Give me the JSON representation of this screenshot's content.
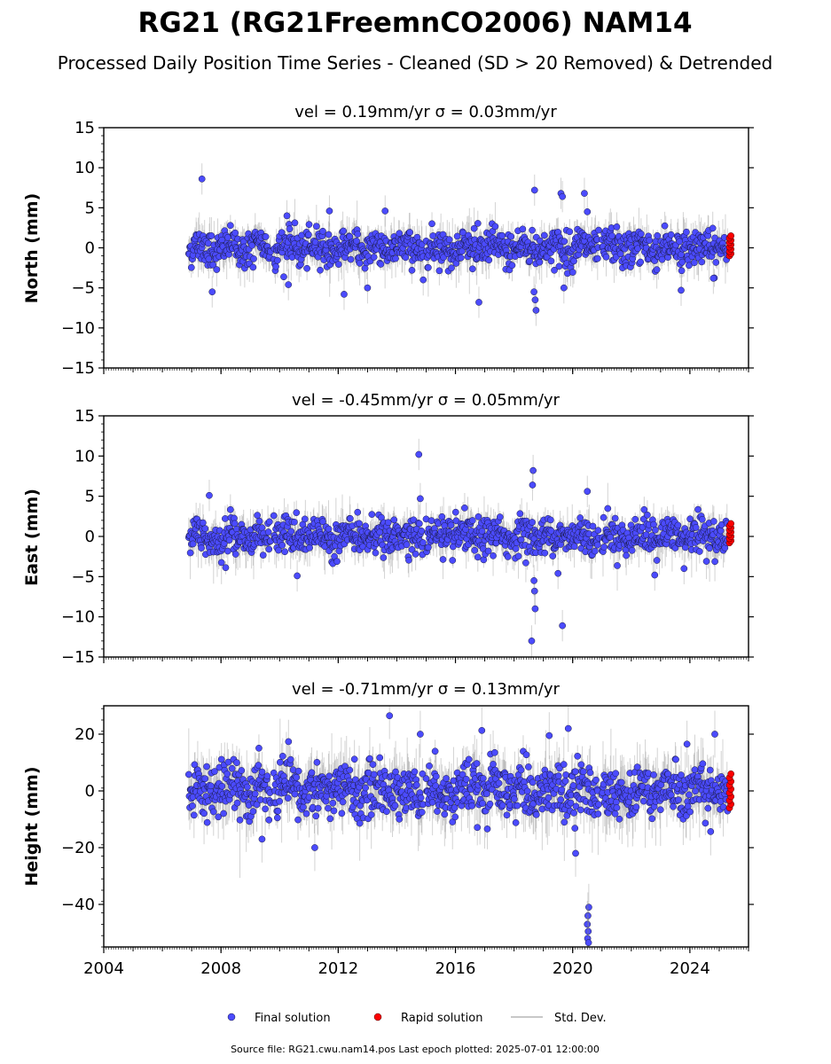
{
  "title": "RG21 (RG21FreemnCO2006) NAM14",
  "subtitle": "Processed Daily Position Time Series - Cleaned (SD > 20 Removed) & Detrended",
  "legend": {
    "final": "Final solution",
    "rapid": "Rapid solution",
    "std": "Std. Dev."
  },
  "footer": "Source file: RG21.cwu.nam14.pos  Last epoch plotted: 2025-07-01 12:00:00",
  "colors": {
    "final": "#4b4bff",
    "final_edge": "#1a1a40",
    "rapid": "#ff0000",
    "std": "#808080"
  },
  "chart_data": [
    {
      "type": "scatter",
      "component": "north",
      "panel_title": "vel = 0.19mm/yr   σ = 0.03mm/yr",
      "ylabel": "North (mm)",
      "xlim": [
        2004,
        2026
      ],
      "ylim": [
        -15,
        15
      ],
      "x_ticks": [
        2004,
        2008,
        2012,
        2016,
        2020,
        2024
      ],
      "y_ticks": [
        -15,
        -10,
        -5,
        0,
        5,
        10,
        15
      ],
      "segments": [
        [
          2006.9,
          2009.7
        ],
        [
          2009.8,
          2014.9
        ],
        [
          2015.0,
          2020.9
        ],
        [
          2021.0,
          2025.3
        ]
      ],
      "rapid_x": [
        2025.3,
        2025.5
      ],
      "typical_scatter": 1.3,
      "rapid_range": [
        -1,
        1.5
      ],
      "outliers": [
        {
          "x": 2007.35,
          "y": 8.6
        },
        {
          "x": 2007.7,
          "y": -5.5
        },
        {
          "x": 2010.25,
          "y": 4.0
        },
        {
          "x": 2010.3,
          "y": -4.6
        },
        {
          "x": 2011.7,
          "y": 4.6
        },
        {
          "x": 2012.2,
          "y": -5.8
        },
        {
          "x": 2013.6,
          "y": 4.6
        },
        {
          "x": 2013.0,
          "y": -5.0
        },
        {
          "x": 2014.9,
          "y": -4.0
        },
        {
          "x": 2016.8,
          "y": -6.8
        },
        {
          "x": 2018.7,
          "y": 7.2
        },
        {
          "x": 2018.75,
          "y": -7.8
        },
        {
          "x": 2018.72,
          "y": -6.5
        },
        {
          "x": 2018.68,
          "y": -5.5
        },
        {
          "x": 2019.6,
          "y": 6.8
        },
        {
          "x": 2019.65,
          "y": 6.4
        },
        {
          "x": 2020.4,
          "y": 6.8
        },
        {
          "x": 2019.7,
          "y": -5.0
        },
        {
          "x": 2020.5,
          "y": 4.5
        },
        {
          "x": 2023.7,
          "y": -5.3
        },
        {
          "x": 2024.8,
          "y": -3.8
        }
      ]
    },
    {
      "type": "scatter",
      "component": "east",
      "panel_title": "vel = -0.45mm/yr   σ = 0.05mm/yr",
      "ylabel": "East (mm)",
      "xlim": [
        2004,
        2026
      ],
      "ylim": [
        -15,
        15
      ],
      "x_ticks": [
        2004,
        2008,
        2012,
        2016,
        2020,
        2024
      ],
      "y_ticks": [
        -15,
        -10,
        -5,
        0,
        5,
        10,
        15
      ],
      "segments": [
        [
          2006.9,
          2009.7
        ],
        [
          2009.8,
          2014.9
        ],
        [
          2015.0,
          2020.9
        ],
        [
          2021.0,
          2025.3
        ]
      ],
      "rapid_x": [
        2025.3,
        2025.5
      ],
      "typical_scatter": 1.3,
      "rapid_range": [
        -0.8,
        1.6
      ],
      "outliers": [
        {
          "x": 2007.6,
          "y": 5.1
        },
        {
          "x": 2010.6,
          "y": -4.9
        },
        {
          "x": 2014.75,
          "y": 10.2
        },
        {
          "x": 2014.8,
          "y": 4.7
        },
        {
          "x": 2018.65,
          "y": 8.2
        },
        {
          "x": 2018.63,
          "y": 6.4
        },
        {
          "x": 2018.7,
          "y": -6.8
        },
        {
          "x": 2018.72,
          "y": -9.0
        },
        {
          "x": 2018.6,
          "y": -13.0
        },
        {
          "x": 2018.68,
          "y": -5.5
        },
        {
          "x": 2019.65,
          "y": -11.1
        },
        {
          "x": 2019.5,
          "y": -4.6
        },
        {
          "x": 2020.5,
          "y": 5.6
        },
        {
          "x": 2022.8,
          "y": -4.8
        },
        {
          "x": 2023.8,
          "y": -4.0
        }
      ]
    },
    {
      "type": "scatter",
      "component": "height",
      "panel_title": "vel = -0.71mm/yr   σ = 0.13mm/yr",
      "ylabel": "Height (mm)",
      "xlim": [
        2004,
        2026
      ],
      "ylim": [
        -55,
        30
      ],
      "x_ticks": [
        2004,
        2008,
        2012,
        2016,
        2020,
        2024
      ],
      "y_ticks": [
        -40,
        -20,
        0,
        20
      ],
      "segments": [
        [
          2006.9,
          2009.7
        ],
        [
          2009.8,
          2014.9
        ],
        [
          2015.0,
          2020.9
        ],
        [
          2021.0,
          2025.3
        ]
      ],
      "rapid_x": [
        2025.3,
        2025.5
      ],
      "typical_scatter": 5.5,
      "rapid_range": [
        -6,
        6
      ],
      "outliers": [
        {
          "x": 2013.75,
          "y": 26.5
        },
        {
          "x": 2014.8,
          "y": 20.0
        },
        {
          "x": 2016.9,
          "y": 21.3
        },
        {
          "x": 2019.2,
          "y": 19.5
        },
        {
          "x": 2019.85,
          "y": 22.0
        },
        {
          "x": 2020.1,
          "y": -22.0
        },
        {
          "x": 2020.55,
          "y": -41.0
        },
        {
          "x": 2020.52,
          "y": -44.0
        },
        {
          "x": 2020.5,
          "y": -47.0
        },
        {
          "x": 2020.53,
          "y": -49.5
        },
        {
          "x": 2020.51,
          "y": -52.0
        },
        {
          "x": 2020.54,
          "y": -53.5
        },
        {
          "x": 2011.2,
          "y": -20.0
        },
        {
          "x": 2009.4,
          "y": -17.0
        },
        {
          "x": 2023.9,
          "y": 16.5
        },
        {
          "x": 2024.85,
          "y": 20.0
        }
      ]
    }
  ]
}
